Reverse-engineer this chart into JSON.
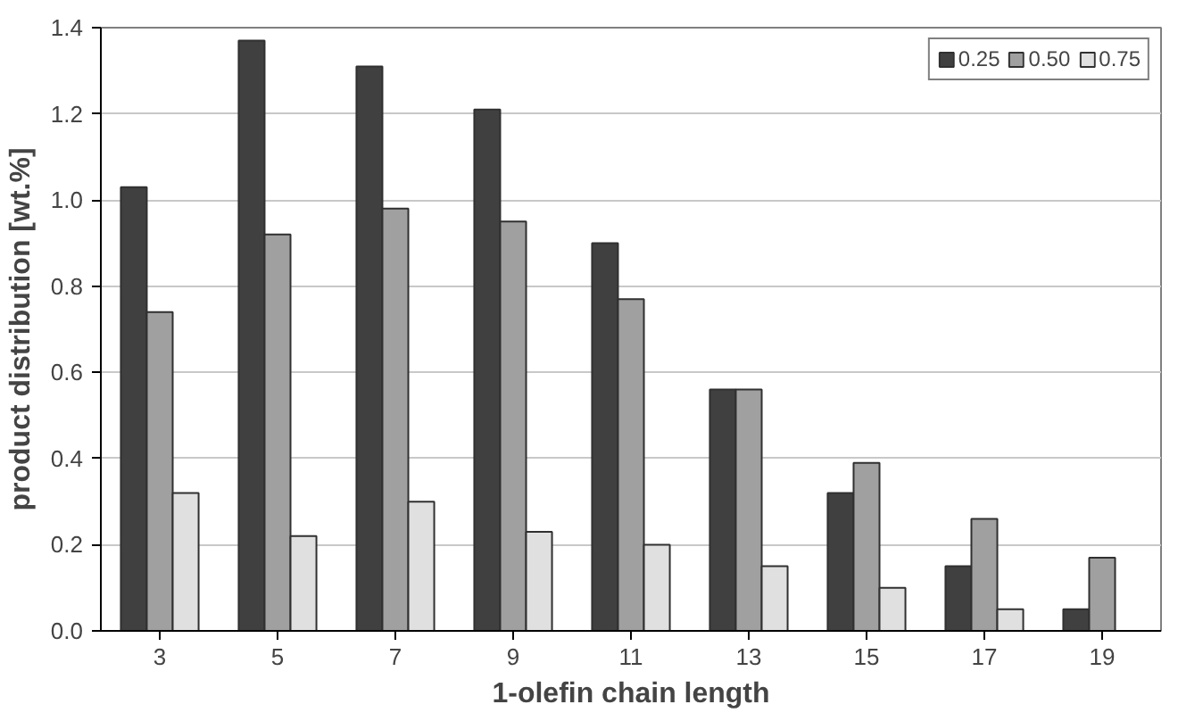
{
  "chart_data": {
    "type": "bar",
    "xlabel": "1-olefin chain length",
    "ylabel": "product distribution [wt.%]",
    "categories": [
      "3",
      "5",
      "7",
      "9",
      "11",
      "13",
      "15",
      "17",
      "19"
    ],
    "series": [
      {
        "name": "0.25",
        "color": "#404040",
        "values": [
          1.03,
          1.37,
          1.31,
          1.21,
          0.9,
          0.56,
          0.32,
          0.15,
          0.05
        ]
      },
      {
        "name": "0.50",
        "color": "#a0a0a0",
        "values": [
          0.74,
          0.92,
          0.98,
          0.95,
          0.77,
          0.56,
          0.39,
          0.26,
          0.17
        ]
      },
      {
        "name": "0.75",
        "color": "#e0e0e0",
        "values": [
          0.32,
          0.22,
          0.3,
          0.23,
          0.2,
          0.15,
          0.1,
          0.05,
          null
        ]
      }
    ],
    "ylim": [
      0,
      1.4
    ],
    "yticks": [
      {
        "value": 0,
        "label": "0.0"
      },
      {
        "value": 0.2,
        "label": "0.2"
      },
      {
        "value": 0.4,
        "label": "0.4"
      },
      {
        "value": 0.6,
        "label": "0.6"
      },
      {
        "value": 0.8,
        "label": "0.8"
      },
      {
        "value": 1.0,
        "label": "1.0"
      },
      {
        "value": 1.2,
        "label": "1.2"
      },
      {
        "value": 1.4,
        "label": "1.4"
      }
    ],
    "grid": "y",
    "legend": "top right"
  }
}
